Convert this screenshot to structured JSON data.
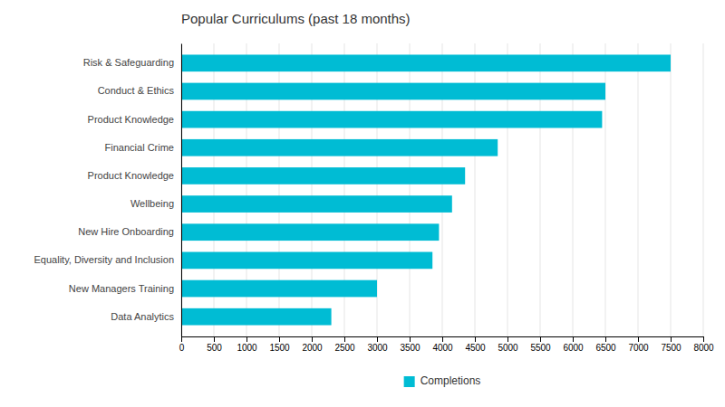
{
  "chart_data": {
    "type": "bar",
    "orientation": "horizontal",
    "title": "Popular Curriculums (past 18 months)",
    "categories": [
      "Risk & Safeguarding",
      "Conduct & Ethics",
      "Product Knowledge",
      "Financial Crime",
      "Product Knowledge",
      "Wellbeing",
      "New Hire Onboarding",
      "Equality, Diversity and Inclusion",
      "New Managers Training",
      "Data Analytics"
    ],
    "series": [
      {
        "name": "Completions",
        "color": "#00bcd4",
        "values": [
          7500,
          6500,
          6450,
          4850,
          4350,
          4150,
          3950,
          3850,
          3000,
          2300
        ]
      }
    ],
    "xlim": [
      0,
      8000
    ],
    "xticks": [
      0,
      500,
      1000,
      1500,
      2000,
      2500,
      3000,
      3500,
      4000,
      4500,
      5000,
      5500,
      6000,
      6500,
      7000,
      7500,
      8000
    ],
    "grid": true,
    "legend": "bottom"
  }
}
